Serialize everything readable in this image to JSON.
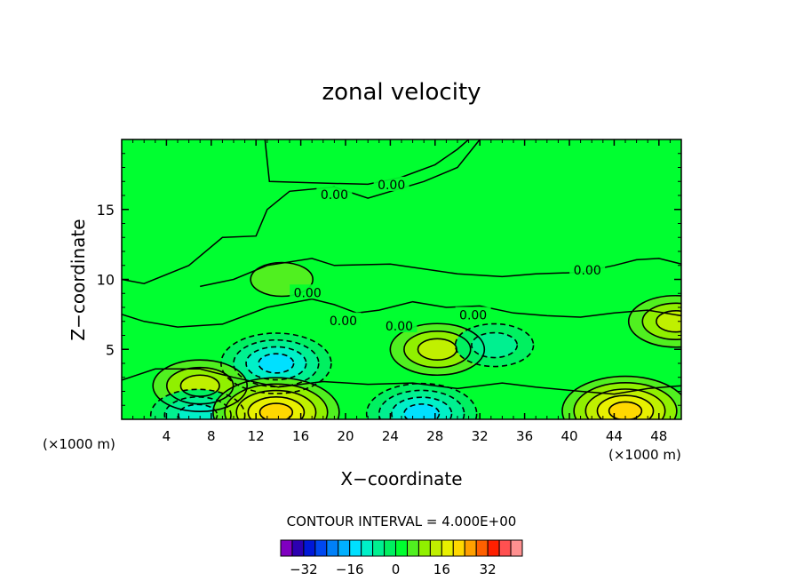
{
  "chart_data": {
    "type": "heatmap",
    "title": "zonal velocity",
    "xlabel": "X−coordinate",
    "ylabel": "Z−coordinate",
    "x_unit_left": "(×1000 m)",
    "x_unit_right": "(×1000 m)",
    "x_range": [
      0,
      50
    ],
    "y_range": [
      0,
      20
    ],
    "x_ticks": [
      4,
      8,
      12,
      16,
      20,
      24,
      28,
      32,
      36,
      40,
      44,
      48
    ],
    "y_ticks": [
      5,
      10,
      15
    ],
    "contour_interval_text": "CONTOUR INTERVAL = 4.000E+00",
    "colorbar": {
      "ticks": [
        "−32",
        "−16",
        "0",
        "16",
        "32"
      ],
      "tick_values": [
        -32,
        -16,
        0,
        16,
        32
      ],
      "levels": [
        -40,
        -36,
        -32,
        -28,
        -24,
        -20,
        -16,
        -12,
        -8,
        -4,
        0,
        4,
        8,
        12,
        16,
        20,
        24,
        28,
        32,
        36,
        40
      ],
      "colors": [
        "#8000c0",
        "#2c00b0",
        "#0018d8",
        "#0048f0",
        "#0080f8",
        "#00b0ff",
        "#00e0ff",
        "#00f0c8",
        "#00f090",
        "#00f060",
        "#00ff30",
        "#50f020",
        "#90f000",
        "#c0f000",
        "#e8f000",
        "#ffd800",
        "#ffa000",
        "#ff6000",
        "#ff2000",
        "#ff5050",
        "#ff9090"
      ]
    },
    "contour_labels": [
      {
        "text": "0.00",
        "x": 19.0,
        "y": 16.0
      },
      {
        "text": "0.00",
        "x": 24.1,
        "y": 16.7
      },
      {
        "text": "0.00",
        "x": 41.6,
        "y": 10.6
      },
      {
        "text": "0.00",
        "x": 16.6,
        "y": 9.0
      },
      {
        "text": "0.00",
        "x": 31.4,
        "y": 7.4
      },
      {
        "text": "0.00",
        "x": 19.8,
        "y": 7.0
      },
      {
        "text": "0.00",
        "x": 24.8,
        "y": 6.6
      }
    ],
    "field": {
      "background_value": 0,
      "features": [
        {
          "x": 28.2,
          "y": 5.0,
          "value": 13,
          "kind": "max"
        },
        {
          "x": 13.8,
          "y": 4.0,
          "value": -14,
          "kind": "min"
        },
        {
          "x": 33.3,
          "y": 5.3,
          "value": -8,
          "kind": "min"
        },
        {
          "x": 7.0,
          "y": 2.4,
          "value": 12,
          "kind": "max"
        },
        {
          "x": 6.8,
          "y": 0.3,
          "value": -12,
          "kind": "min"
        },
        {
          "x": 13.8,
          "y": 0.5,
          "value": 18,
          "kind": "max"
        },
        {
          "x": 26.8,
          "y": 0.4,
          "value": -14,
          "kind": "min"
        },
        {
          "x": 45.0,
          "y": 0.6,
          "value": 18,
          "kind": "max"
        },
        {
          "x": 49.5,
          "y": 7.0,
          "value": 10,
          "kind": "max"
        },
        {
          "x": 14.3,
          "y": 10.0,
          "value": 4,
          "kind": "max"
        }
      ]
    }
  }
}
